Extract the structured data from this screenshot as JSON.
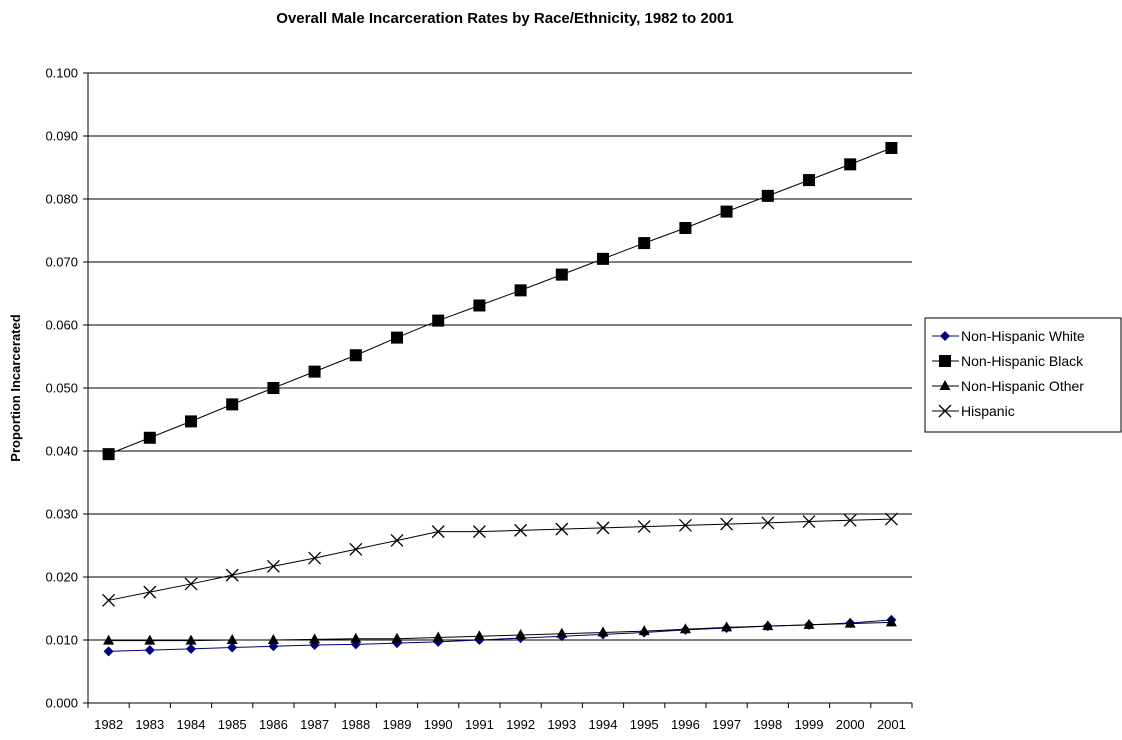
{
  "chart_data": {
    "type": "line",
    "title": "Overall Male Incarceration Rates by Race/Ethnicity, 1982 to 2001",
    "xlabel": "",
    "ylabel": "Proportion Incarcerated",
    "categories": [
      "1982",
      "1983",
      "1984",
      "1985",
      "1986",
      "1987",
      "1988",
      "1989",
      "1990",
      "1991",
      "1992",
      "1993",
      "1994",
      "1995",
      "1996",
      "1997",
      "1998",
      "1999",
      "2000",
      "2001"
    ],
    "ylim": [
      0,
      0.1
    ],
    "yticks": [
      "0.000",
      "0.010",
      "0.020",
      "0.030",
      "0.040",
      "0.050",
      "0.060",
      "0.070",
      "0.080",
      "0.090",
      "0.100"
    ],
    "grid": true,
    "legend_position": "right",
    "series": [
      {
        "name": "Non-Hispanic White",
        "marker": "diamond",
        "line_color": "#000080",
        "marker_color": "#000080",
        "values": [
          0.0082,
          0.0084,
          0.0086,
          0.0088,
          0.009,
          0.0092,
          0.0093,
          0.0095,
          0.0097,
          0.01,
          0.0103,
          0.0106,
          0.0109,
          0.0112,
          0.0116,
          0.0119,
          0.0122,
          0.0124,
          0.0127,
          0.0132
        ]
      },
      {
        "name": "Non-Hispanic Black",
        "marker": "square",
        "line_color": "#000000",
        "marker_color": "#000000",
        "values": [
          0.0395,
          0.0421,
          0.0447,
          0.0474,
          0.05,
          0.0526,
          0.0552,
          0.058,
          0.0607,
          0.0631,
          0.0655,
          0.068,
          0.0705,
          0.073,
          0.0754,
          0.078,
          0.0805,
          0.083,
          0.0855,
          0.0881
        ]
      },
      {
        "name": "Non-Hispanic Other",
        "marker": "triangle",
        "line_color": "#000000",
        "marker_color": "#000000",
        "values": [
          0.0099,
          0.0099,
          0.0099,
          0.01,
          0.01,
          0.0101,
          0.0102,
          0.0102,
          0.0104,
          0.0106,
          0.0108,
          0.011,
          0.0112,
          0.0114,
          0.0117,
          0.012,
          0.0122,
          0.0124,
          0.0126,
          0.0128
        ]
      },
      {
        "name": "Hispanic",
        "marker": "x",
        "line_color": "#000000",
        "marker_color": "#000000",
        "values": [
          0.0163,
          0.0176,
          0.0189,
          0.0203,
          0.0217,
          0.023,
          0.0244,
          0.0258,
          0.0272,
          0.0272,
          0.0274,
          0.0276,
          0.0278,
          0.028,
          0.0282,
          0.0284,
          0.0286,
          0.0288,
          0.029,
          0.0292
        ]
      }
    ]
  }
}
